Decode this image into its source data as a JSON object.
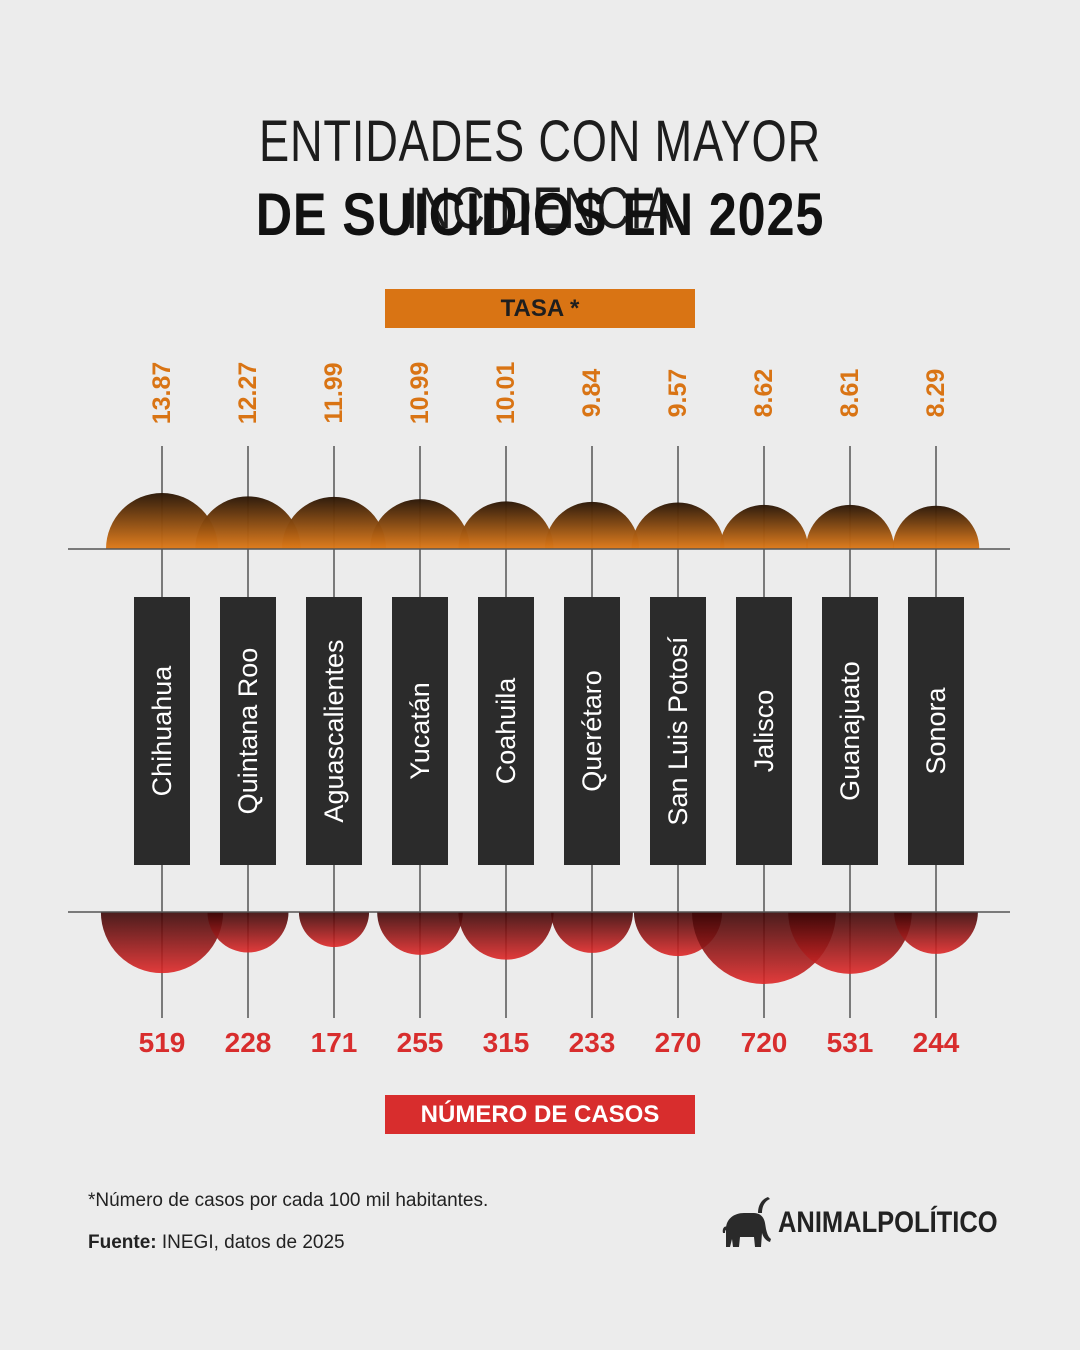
{
  "title": {
    "line1": "ENTIDADES CON MAYOR INCIDENCIA",
    "line2": "DE SUICIDIOS EN 2025"
  },
  "labels": {
    "tasa": "TASA *",
    "casos": "NÚMERO DE CASOS"
  },
  "footnote": "*Número de casos por cada 100 mil habitantes.",
  "source": {
    "label": "Fuente:",
    "text": " INEGI, datos de 2025"
  },
  "brand": {
    "name": "ANIMALPOLÍTICO",
    "icon": "elephant-icon"
  },
  "colors": {
    "rate": "#d97414",
    "cases": "#d82d2d",
    "state_box": "#2b2b2b",
    "background": "#ececec"
  },
  "chart_data": {
    "type": "bubble",
    "categories": [
      "Chihuahua",
      "Quintana Roo",
      "Aguascalientes",
      "Yucatán",
      "Coahuila",
      "Querétaro",
      "San Luis Potosí",
      "Jalisco",
      "Guanajuato",
      "Sonora"
    ],
    "series": [
      {
        "name": "TASA *",
        "values": [
          13.87,
          12.27,
          11.99,
          10.99,
          10.01,
          9.84,
          9.57,
          8.62,
          8.61,
          8.29
        ],
        "labels": [
          "13.87",
          "12.27",
          "11.99",
          "10.99",
          "10.01",
          "9.84",
          "9.57",
          "8.62",
          "8.61",
          "8.29"
        ]
      },
      {
        "name": "NÚMERO DE CASOS",
        "values": [
          519,
          228,
          171,
          255,
          315,
          233,
          270,
          720,
          531,
          244
        ],
        "labels": [
          "519",
          "228",
          "171",
          "255",
          "315",
          "233",
          "270",
          "720",
          "531",
          "244"
        ]
      }
    ]
  }
}
